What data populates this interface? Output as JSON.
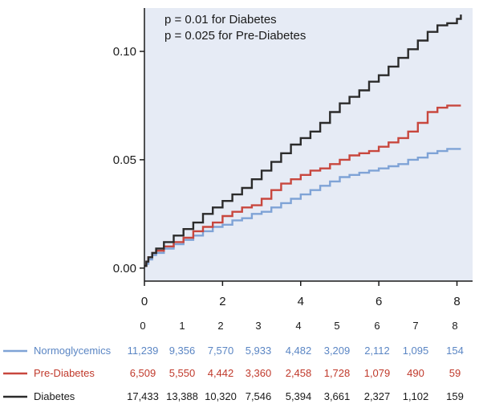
{
  "chart_data": {
    "type": "line",
    "title": "",
    "xlabel": "",
    "ylabel": "",
    "xlim": [
      0,
      8.4
    ],
    "ylim": [
      -0.006,
      0.12
    ],
    "x_ticks": [
      0,
      2,
      4,
      6,
      8
    ],
    "x_tick_labels": [
      "0",
      "2",
      "4",
      "6",
      "8"
    ],
    "y_ticks": [
      0.0,
      0.05,
      0.1
    ],
    "y_tick_labels": [
      "0.00",
      "0.05",
      "0.10"
    ],
    "grid": false,
    "background": "#e6ebf5",
    "annotations": [
      {
        "text": "p = 0.01 for Diabetes"
      },
      {
        "text": "p = 0.025 for Pre-Diabetes"
      }
    ],
    "series": [
      {
        "name": "Normoglycemics",
        "color": "#7fa3d6",
        "x": [
          0,
          0.05,
          0.1,
          0.2,
          0.3,
          0.5,
          0.75,
          1.0,
          1.25,
          1.5,
          1.75,
          2.0,
          2.25,
          2.5,
          2.75,
          3.0,
          3.25,
          3.5,
          3.75,
          4.0,
          4.25,
          4.5,
          4.75,
          5.0,
          5.25,
          5.5,
          5.75,
          6.0,
          6.25,
          6.5,
          6.75,
          7.0,
          7.25,
          7.5,
          7.75,
          8.0,
          8.1
        ],
        "y": [
          0.001,
          0.002,
          0.004,
          0.006,
          0.007,
          0.009,
          0.011,
          0.013,
          0.015,
          0.017,
          0.019,
          0.02,
          0.022,
          0.023,
          0.025,
          0.026,
          0.028,
          0.03,
          0.032,
          0.034,
          0.036,
          0.038,
          0.04,
          0.042,
          0.043,
          0.044,
          0.045,
          0.046,
          0.047,
          0.048,
          0.05,
          0.051,
          0.053,
          0.054,
          0.055,
          0.055,
          0.055
        ]
      },
      {
        "name": "Pre-Diabetes",
        "color": "#c8473e",
        "x": [
          0,
          0.05,
          0.1,
          0.2,
          0.3,
          0.5,
          0.75,
          1.0,
          1.25,
          1.5,
          1.75,
          2.0,
          2.25,
          2.5,
          2.75,
          3.0,
          3.25,
          3.5,
          3.75,
          4.0,
          4.25,
          4.5,
          4.75,
          5.0,
          5.25,
          5.5,
          5.75,
          6.0,
          6.25,
          6.5,
          6.75,
          7.0,
          7.25,
          7.5,
          7.75,
          8.0,
          8.1
        ],
        "y": [
          0.001,
          0.003,
          0.005,
          0.007,
          0.008,
          0.01,
          0.012,
          0.014,
          0.017,
          0.019,
          0.021,
          0.024,
          0.026,
          0.028,
          0.029,
          0.032,
          0.036,
          0.039,
          0.041,
          0.043,
          0.045,
          0.046,
          0.048,
          0.05,
          0.052,
          0.053,
          0.054,
          0.056,
          0.058,
          0.06,
          0.063,
          0.067,
          0.072,
          0.074,
          0.075,
          0.075,
          0.075
        ]
      },
      {
        "name": "Diabetes",
        "color": "#2b2b2b",
        "x": [
          0,
          0.05,
          0.1,
          0.2,
          0.3,
          0.5,
          0.75,
          1.0,
          1.25,
          1.5,
          1.75,
          2.0,
          2.25,
          2.5,
          2.75,
          3.0,
          3.25,
          3.5,
          3.75,
          4.0,
          4.25,
          4.5,
          4.75,
          5.0,
          5.25,
          5.5,
          5.75,
          6.0,
          6.25,
          6.5,
          6.75,
          7.0,
          7.25,
          7.5,
          7.75,
          8.0,
          8.1
        ],
        "y": [
          0.001,
          0.003,
          0.005,
          0.007,
          0.009,
          0.012,
          0.015,
          0.018,
          0.021,
          0.025,
          0.028,
          0.031,
          0.034,
          0.037,
          0.041,
          0.045,
          0.049,
          0.053,
          0.057,
          0.06,
          0.063,
          0.067,
          0.072,
          0.076,
          0.079,
          0.082,
          0.086,
          0.089,
          0.093,
          0.097,
          0.101,
          0.105,
          0.109,
          0.112,
          0.113,
          0.115,
          0.117
        ]
      }
    ]
  },
  "risk_table": {
    "time_points": [
      "0",
      "1",
      "2",
      "3",
      "4",
      "5",
      "6",
      "7",
      "8"
    ],
    "rows": [
      {
        "name": "Normoglycemics",
        "color": "#5b86c4",
        "line_color": "#7fa3d6",
        "counts": [
          "11,239",
          "9,356",
          "7,570",
          "5,933",
          "4,482",
          "3,209",
          "2,112",
          "1,095",
          "154"
        ]
      },
      {
        "name": "Pre-Diabetes",
        "color": "#c0392b",
        "line_color": "#c8473e",
        "counts": [
          "6,509",
          "5,550",
          "4,442",
          "3,360",
          "2,458",
          "1,728",
          "1,079",
          "490",
          "59"
        ]
      },
      {
        "name": "Diabetes",
        "color": "#1a1a1a",
        "line_color": "#2b2b2b",
        "counts": [
          "17,433",
          "13,388",
          "10,320",
          "7,546",
          "5,394",
          "3,661",
          "2,327",
          "1,102",
          "159"
        ]
      }
    ]
  }
}
